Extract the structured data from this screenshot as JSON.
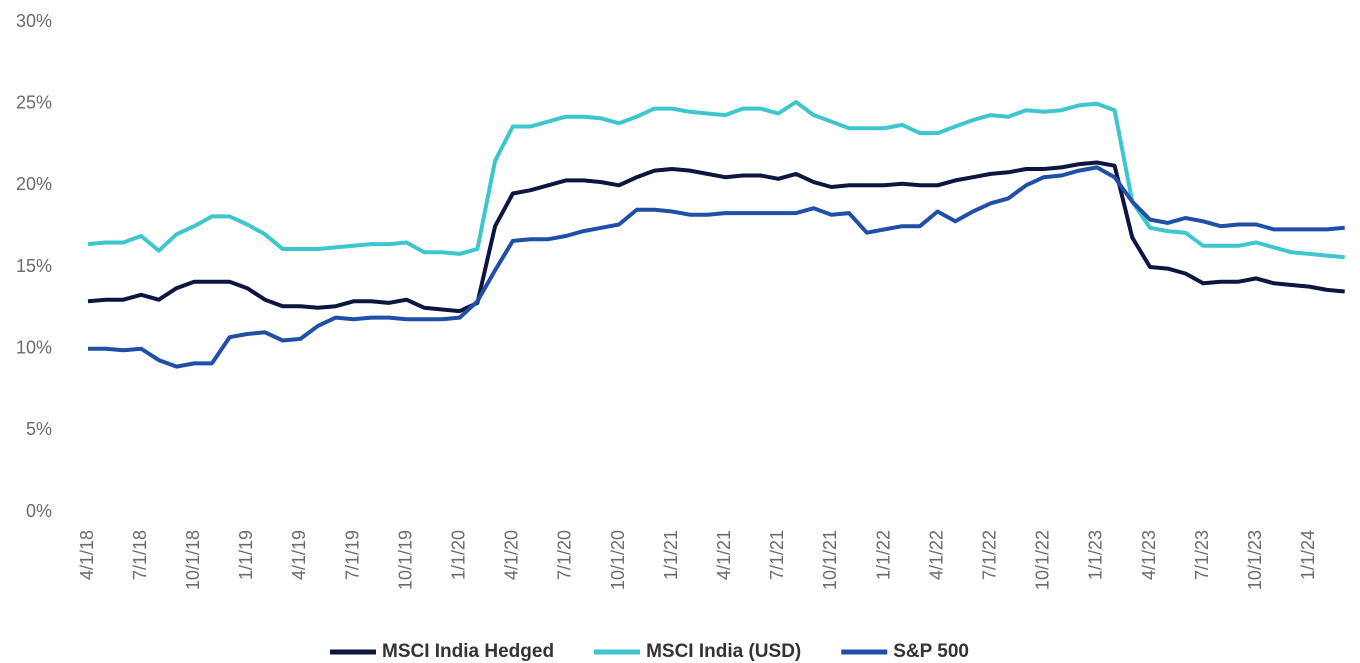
{
  "chart_data": {
    "type": "line",
    "categories": [
      "4/1/18",
      null,
      null,
      "7/1/18",
      null,
      null,
      "10/1/18",
      null,
      null,
      "1/1/19",
      null,
      null,
      "4/1/19",
      null,
      null,
      "7/1/19",
      null,
      null,
      "10/1/19",
      null,
      null,
      "1/1/20",
      null,
      null,
      "4/1/20",
      null,
      null,
      "7/1/20",
      null,
      null,
      "10/1/20",
      null,
      null,
      "1/1/21",
      null,
      null,
      "4/1/21",
      null,
      null,
      "7/1/21",
      null,
      null,
      "10/1/21",
      null,
      null,
      "1/1/22",
      null,
      null,
      "4/1/22",
      null,
      null,
      "7/1/22",
      null,
      null,
      "10/1/22",
      null,
      null,
      "1/1/23",
      null,
      null,
      "4/1/23",
      null,
      null,
      "7/1/23",
      null,
      null,
      "10/1/23",
      null,
      null,
      "1/1/24",
      null,
      null
    ],
    "series": [
      {
        "name": "MSCI India Hedged",
        "color": "#0d1540",
        "values": [
          12.9,
          13.0,
          13.0,
          13.3,
          13.0,
          13.7,
          14.1,
          14.1,
          14.1,
          13.7,
          13.0,
          12.6,
          12.6,
          12.5,
          12.6,
          12.9,
          12.9,
          12.8,
          13.0,
          12.5,
          12.4,
          12.3,
          12.8,
          17.5,
          19.5,
          19.7,
          20.0,
          20.3,
          20.3,
          20.2,
          20.0,
          20.5,
          20.9,
          21.0,
          20.9,
          20.7,
          20.5,
          20.6,
          20.6,
          20.4,
          20.7,
          20.2,
          19.9,
          20.0,
          20.0,
          20.0,
          20.1,
          20.0,
          20.0,
          20.3,
          20.5,
          20.7,
          20.8,
          21.0,
          21.0,
          21.1,
          21.3,
          21.4,
          21.2,
          16.8,
          15.0,
          14.9,
          14.6,
          14.0,
          14.1,
          14.1,
          14.3,
          14.0,
          13.9,
          13.8,
          13.6,
          13.5
        ]
      },
      {
        "name": "MSCI India (USD)",
        "color": "#3ec6cf",
        "values": [
          16.4,
          16.5,
          16.5,
          16.9,
          16.0,
          17.0,
          17.5,
          18.1,
          18.1,
          17.6,
          17.0,
          16.1,
          16.1,
          16.1,
          16.2,
          16.3,
          16.4,
          16.4,
          16.5,
          15.9,
          15.9,
          15.8,
          16.1,
          21.5,
          23.6,
          23.6,
          23.9,
          24.2,
          24.2,
          24.1,
          23.8,
          24.2,
          24.7,
          24.7,
          24.5,
          24.4,
          24.3,
          24.7,
          24.7,
          24.4,
          25.1,
          24.3,
          23.9,
          23.5,
          23.5,
          23.5,
          23.7,
          23.2,
          23.2,
          23.6,
          24.0,
          24.3,
          24.2,
          24.6,
          24.5,
          24.6,
          24.9,
          25.0,
          24.6,
          19.0,
          17.4,
          17.2,
          17.1,
          16.3,
          16.3,
          16.3,
          16.5,
          16.2,
          15.9,
          15.8,
          15.7,
          15.6
        ]
      },
      {
        "name": "S&P 500",
        "color": "#1f4fa6",
        "values": [
          10.0,
          10.0,
          9.9,
          10.0,
          9.3,
          8.9,
          9.1,
          9.1,
          10.7,
          10.9,
          11.0,
          10.5,
          10.6,
          11.4,
          11.9,
          11.8,
          11.9,
          11.9,
          11.8,
          11.8,
          11.8,
          11.9,
          12.9,
          14.8,
          16.6,
          16.7,
          16.7,
          16.9,
          17.2,
          17.4,
          17.6,
          18.5,
          18.5,
          18.4,
          18.2,
          18.2,
          18.3,
          18.3,
          18.3,
          18.3,
          18.3,
          18.6,
          18.2,
          18.3,
          17.1,
          17.3,
          17.5,
          17.5,
          18.4,
          17.8,
          18.4,
          18.9,
          19.2,
          20.0,
          20.5,
          20.6,
          20.9,
          21.1,
          20.5,
          19.0,
          17.9,
          17.7,
          18.0,
          17.8,
          17.5,
          17.6,
          17.6,
          17.3,
          17.3,
          17.3,
          17.3,
          17.4
        ]
      }
    ],
    "ylim": [
      0,
      30
    ],
    "yticks": [
      {
        "value": 0,
        "label": "0%"
      },
      {
        "value": 5,
        "label": "5%"
      },
      {
        "value": 10,
        "label": "10%"
      },
      {
        "value": 15,
        "label": "15%"
      },
      {
        "value": 20,
        "label": "20%"
      },
      {
        "value": 25,
        "label": "25%"
      },
      {
        "value": 30,
        "label": "30%"
      }
    ],
    "grid": false,
    "legend": "bottom"
  }
}
